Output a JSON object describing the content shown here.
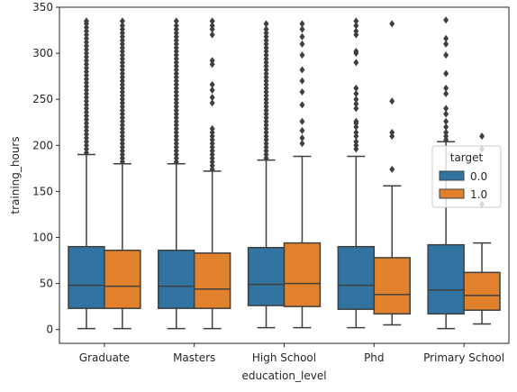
{
  "chart_data": {
    "type": "boxplot",
    "xlabel": "education_level",
    "ylabel": "training_hours",
    "ylim": [
      -15,
      350
    ],
    "yticks": [
      0,
      50,
      100,
      150,
      200,
      250,
      300,
      350
    ],
    "grid": false,
    "categories": [
      "Graduate",
      "Masters",
      "High School",
      "Phd",
      "Primary School"
    ],
    "legend": {
      "title": "target",
      "placement": "right",
      "entries": [
        "0.0",
        "1.0"
      ]
    },
    "series": [
      {
        "name": "0.0",
        "color": "#3274a1",
        "boxes": [
          {
            "whisker_low": 1,
            "q1": 23,
            "median": 48,
            "q3": 90,
            "whisker_high": 190,
            "outliers": [
              192,
              196,
              200,
              204,
              208,
              212,
              216,
              220,
              224,
              228,
              232,
              236,
              240,
              244,
              248,
              252,
              256,
              260,
              264,
              268,
              272,
              276,
              280,
              284,
              288,
              292,
              296,
              300,
              304,
              308,
              312,
              316,
              320,
              324,
              328,
              332,
              335
            ]
          },
          {
            "whisker_low": 1,
            "q1": 23,
            "median": 47,
            "q3": 86,
            "whisker_high": 180,
            "outliers": [
              182,
              186,
              190,
              194,
              198,
              202,
              206,
              210,
              214,
              218,
              222,
              226,
              230,
              234,
              238,
              242,
              246,
              250,
              254,
              258,
              262,
              266,
              270,
              274,
              278,
              282,
              286,
              290,
              294,
              298,
              302,
              306,
              310,
              314,
              318,
              322,
              326,
              330,
              335
            ]
          },
          {
            "whisker_low": 2,
            "q1": 26,
            "median": 49,
            "q3": 89,
            "whisker_high": 184,
            "outliers": [
              186,
              190,
              194,
              198,
              202,
              206,
              210,
              214,
              218,
              222,
              226,
              230,
              234,
              238,
              242,
              246,
              250,
              254,
              258,
              262,
              266,
              270,
              274,
              278,
              282,
              286,
              290,
              294,
              298,
              302,
              306,
              310,
              314,
              318,
              322,
              326,
              332
            ]
          },
          {
            "whisker_low": 2,
            "q1": 22,
            "median": 48,
            "q3": 90,
            "whisker_high": 188,
            "outliers": [
              196,
              200,
              204,
              210,
              214,
              220,
              224,
              226,
              240,
              245,
              250,
              256,
              262,
              290,
              300,
              302,
              320,
              324,
              330,
              335
            ]
          },
          {
            "whisker_low": 1,
            "q1": 17,
            "median": 43,
            "q3": 92,
            "whisker_high": 204,
            "outliers": [
              206,
              210,
              214,
              220,
              226,
              234,
              240,
              256,
              262,
              278,
              298,
              310,
              316,
              336
            ]
          }
        ]
      },
      {
        "name": "1.0",
        "color": "#e1812c",
        "boxes": [
          {
            "whisker_low": 1,
            "q1": 23,
            "median": 47,
            "q3": 86,
            "whisker_high": 180,
            "outliers": [
              182,
              186,
              190,
              194,
              198,
              202,
              206,
              210,
              214,
              218,
              222,
              226,
              230,
              234,
              238,
              242,
              246,
              250,
              254,
              258,
              262,
              266,
              270,
              274,
              278,
              282,
              286,
              290,
              294,
              298,
              302,
              306,
              310,
              314,
              318,
              322,
              326,
              330,
              335
            ]
          },
          {
            "whisker_low": 1,
            "q1": 23,
            "median": 44,
            "q3": 83,
            "whisker_high": 172,
            "outliers": [
              174,
              178,
              182,
              186,
              190,
              194,
              198,
              202,
              206,
              210,
              214,
              218,
              246,
              252,
              260,
              266,
              288,
              292,
              320,
              326,
              330,
              335
            ]
          },
          {
            "whisker_low": 2,
            "q1": 25,
            "median": 50,
            "q3": 94,
            "whisker_high": 188,
            "outliers": [
              202,
              208,
              216,
              226,
              244,
              258,
              270,
              282,
              298,
              310,
              318,
              326,
              332
            ]
          },
          {
            "whisker_low": 5,
            "q1": 17,
            "median": 38,
            "q3": 78,
            "whisker_high": 156,
            "outliers": [
              174,
              210,
              214,
              248,
              332
            ]
          },
          {
            "whisker_low": 6,
            "q1": 21,
            "median": 37,
            "q3": 62,
            "whisker_high": 94,
            "outliers": [
              136,
              196,
              210
            ]
          }
        ]
      }
    ]
  }
}
